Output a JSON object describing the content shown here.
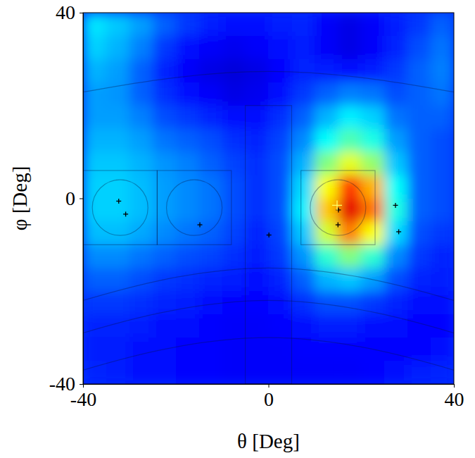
{
  "chart_data": {
    "type": "heatmap",
    "x_label": "θ [Deg]",
    "y_label": "φ [Deg]",
    "xlim": [
      -40,
      40
    ],
    "ylim": [
      -40,
      40
    ],
    "xticks": [
      -40,
      0,
      40
    ],
    "yticks": [
      -40,
      0,
      40
    ],
    "zlim": [
      0,
      1
    ],
    "x": [
      -37.5,
      -32.5,
      -27.5,
      -22.5,
      -17.5,
      -12.5,
      -7.5,
      -2.5,
      2.5,
      7.5,
      12.5,
      17.5,
      22.5,
      27.5,
      32.5,
      37.5
    ],
    "y": [
      37.5,
      32.5,
      27.5,
      22.5,
      17.5,
      12.5,
      7.5,
      2.5,
      -2.5,
      -7.5,
      -12.5,
      -17.5,
      -22.5,
      -27.5,
      -32.5,
      -37.5
    ],
    "values": [
      [
        0.35,
        0.32,
        0.28,
        0.22,
        0.18,
        0.15,
        0.14,
        0.14,
        0.15,
        0.16,
        0.12,
        0.1,
        0.12,
        0.15,
        0.18,
        0.22
      ],
      [
        0.33,
        0.3,
        0.25,
        0.18,
        0.14,
        0.12,
        0.11,
        0.12,
        0.14,
        0.15,
        0.12,
        0.1,
        0.12,
        0.16,
        0.2,
        0.24
      ],
      [
        0.3,
        0.28,
        0.22,
        0.16,
        0.12,
        0.1,
        0.09,
        0.1,
        0.13,
        0.16,
        0.15,
        0.14,
        0.15,
        0.18,
        0.22,
        0.25
      ],
      [
        0.28,
        0.27,
        0.22,
        0.17,
        0.14,
        0.12,
        0.1,
        0.11,
        0.14,
        0.18,
        0.22,
        0.25,
        0.24,
        0.2,
        0.22,
        0.24
      ],
      [
        0.28,
        0.28,
        0.25,
        0.2,
        0.18,
        0.16,
        0.14,
        0.14,
        0.17,
        0.22,
        0.3,
        0.36,
        0.33,
        0.24,
        0.22,
        0.22
      ],
      [
        0.3,
        0.3,
        0.28,
        0.24,
        0.22,
        0.2,
        0.17,
        0.16,
        0.19,
        0.26,
        0.38,
        0.45,
        0.4,
        0.28,
        0.22,
        0.2
      ],
      [
        0.32,
        0.32,
        0.3,
        0.27,
        0.25,
        0.22,
        0.19,
        0.17,
        0.2,
        0.3,
        0.5,
        0.6,
        0.52,
        0.32,
        0.22,
        0.2
      ],
      [
        0.33,
        0.33,
        0.31,
        0.28,
        0.26,
        0.24,
        0.2,
        0.17,
        0.2,
        0.34,
        0.62,
        0.82,
        0.7,
        0.38,
        0.22,
        0.2
      ],
      [
        0.33,
        0.33,
        0.31,
        0.28,
        0.26,
        0.24,
        0.2,
        0.17,
        0.2,
        0.36,
        0.68,
        0.9,
        0.76,
        0.4,
        0.22,
        0.2
      ],
      [
        0.31,
        0.31,
        0.29,
        0.26,
        0.24,
        0.22,
        0.19,
        0.16,
        0.19,
        0.32,
        0.58,
        0.75,
        0.62,
        0.34,
        0.2,
        0.18
      ],
      [
        0.26,
        0.26,
        0.24,
        0.22,
        0.2,
        0.19,
        0.17,
        0.15,
        0.18,
        0.27,
        0.42,
        0.5,
        0.42,
        0.26,
        0.18,
        0.16
      ],
      [
        0.22,
        0.22,
        0.2,
        0.18,
        0.17,
        0.16,
        0.15,
        0.14,
        0.16,
        0.22,
        0.3,
        0.32,
        0.28,
        0.2,
        0.16,
        0.15
      ],
      [
        0.18,
        0.18,
        0.17,
        0.16,
        0.15,
        0.14,
        0.13,
        0.13,
        0.14,
        0.17,
        0.2,
        0.2,
        0.18,
        0.16,
        0.14,
        0.14
      ],
      [
        0.16,
        0.16,
        0.15,
        0.14,
        0.14,
        0.13,
        0.12,
        0.12,
        0.13,
        0.14,
        0.15,
        0.15,
        0.14,
        0.14,
        0.13,
        0.13
      ],
      [
        0.15,
        0.15,
        0.14,
        0.14,
        0.13,
        0.13,
        0.12,
        0.12,
        0.12,
        0.13,
        0.13,
        0.13,
        0.13,
        0.13,
        0.13,
        0.14
      ],
      [
        0.16,
        0.15,
        0.14,
        0.14,
        0.13,
        0.13,
        0.12,
        0.12,
        0.12,
        0.12,
        0.12,
        0.12,
        0.13,
        0.14,
        0.15,
        0.16
      ]
    ],
    "markers": {
      "x": [
        -32.3,
        -30.8,
        -14.8,
        0.1,
        15.1,
        15.0,
        27.4,
        28.1,
        14.8
      ],
      "y": [
        -0.6,
        -3.4,
        -5.7,
        -7.9,
        -2.5,
        -5.7,
        -1.5,
        -7.2,
        -1.5
      ],
      "colors": [
        "#000000",
        "#000000",
        "#000000",
        "#000000",
        "#000000",
        "#000000",
        "#000000",
        "#000000",
        "#ffff66"
      ],
      "marker": "cross"
    }
  }
}
